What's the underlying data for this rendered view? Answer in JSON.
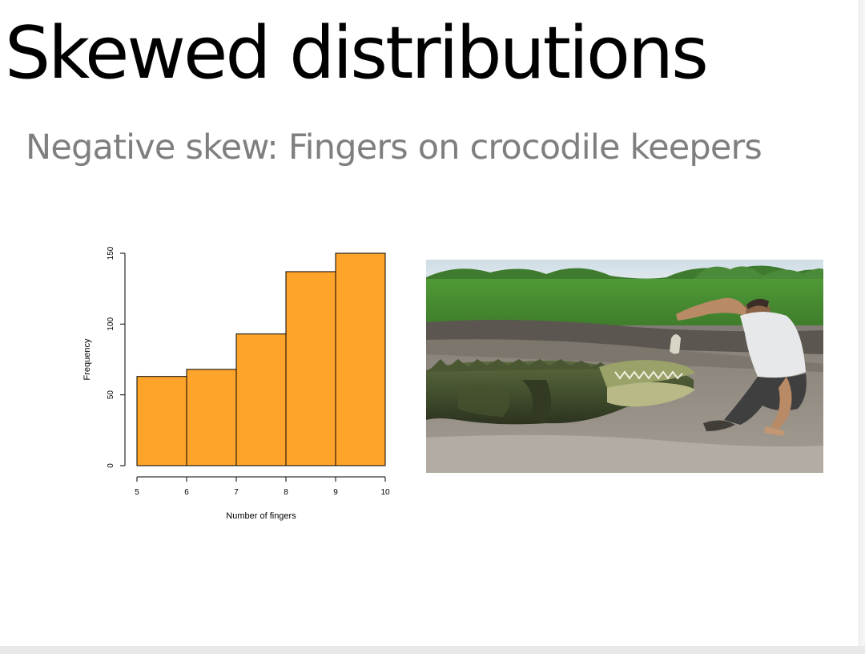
{
  "slide": {
    "title": "Skewed distributions",
    "subtitle": "Negative skew: Fingers on crocodile keepers"
  },
  "chart_data": {
    "type": "bar",
    "title": "",
    "xlabel": "Number of fingers",
    "ylabel": "Frequency",
    "bins": [
      [
        5,
        6
      ],
      [
        6,
        7
      ],
      [
        7,
        8
      ],
      [
        8,
        9
      ],
      [
        9,
        10
      ]
    ],
    "values": [
      63,
      68,
      93,
      137,
      150
    ],
    "x_ticks": [
      5,
      6,
      7,
      8,
      9,
      10
    ],
    "y_ticks": [
      0,
      50,
      100,
      150
    ],
    "xlim": [
      5,
      10
    ],
    "ylim": [
      0,
      150
    ],
    "bar_color": "#FFA42A",
    "grid": false,
    "legend": "none"
  },
  "photo": {
    "subject": "keeper-feeding-crocodile"
  },
  "colors": {
    "title": "#000000",
    "subtitle": "#7f7f7f"
  }
}
